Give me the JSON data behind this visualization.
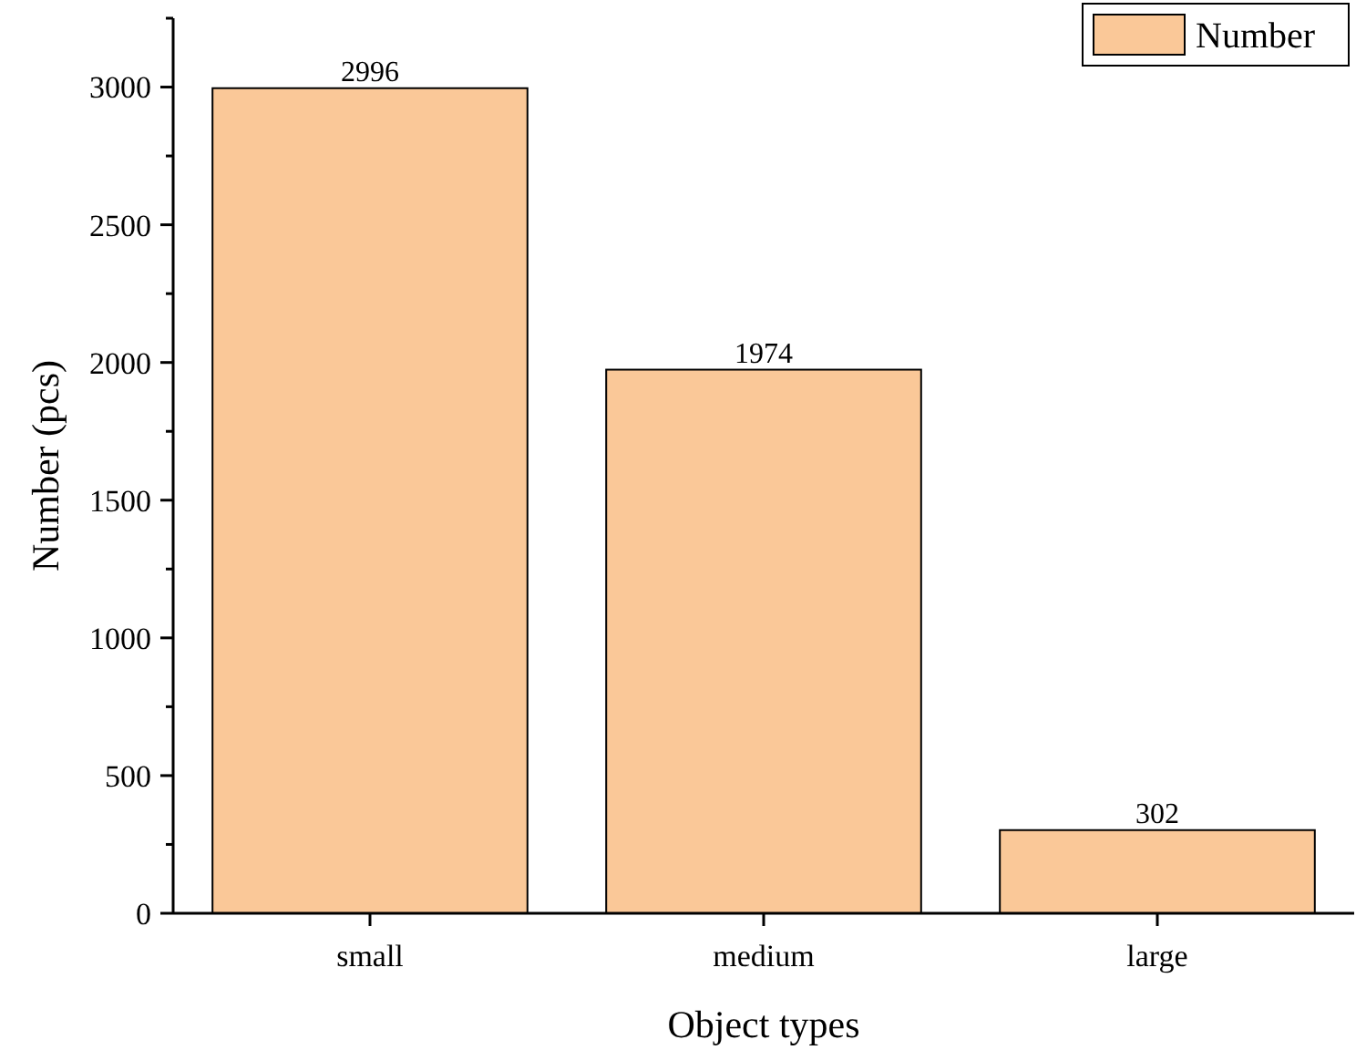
{
  "chart_data": {
    "type": "bar",
    "xlabel": "Object types",
    "ylabel": "Number (pcs)",
    "categories": [
      "small",
      "medium",
      "large"
    ],
    "series": [
      {
        "name": "Number",
        "color": "#fac898",
        "values": [
          2996,
          1974,
          302
        ]
      }
    ],
    "ylim": [
      0,
      3250
    ],
    "yticks": [
      0,
      {
        "value": 250,
        "label": null
      },
      500,
      {
        "value": 750,
        "label": null
      },
      1000,
      {
        "value": 1250,
        "label": null
      },
      1500,
      {
        "value": 1750,
        "label": null
      },
      2000,
      {
        "value": 2250,
        "label": null
      },
      2500,
      {
        "value": 2750,
        "label": null
      },
      3000,
      {
        "value": 3250,
        "label": null
      }
    ],
    "data_labels": true,
    "legend": "top right",
    "grid": false
  }
}
